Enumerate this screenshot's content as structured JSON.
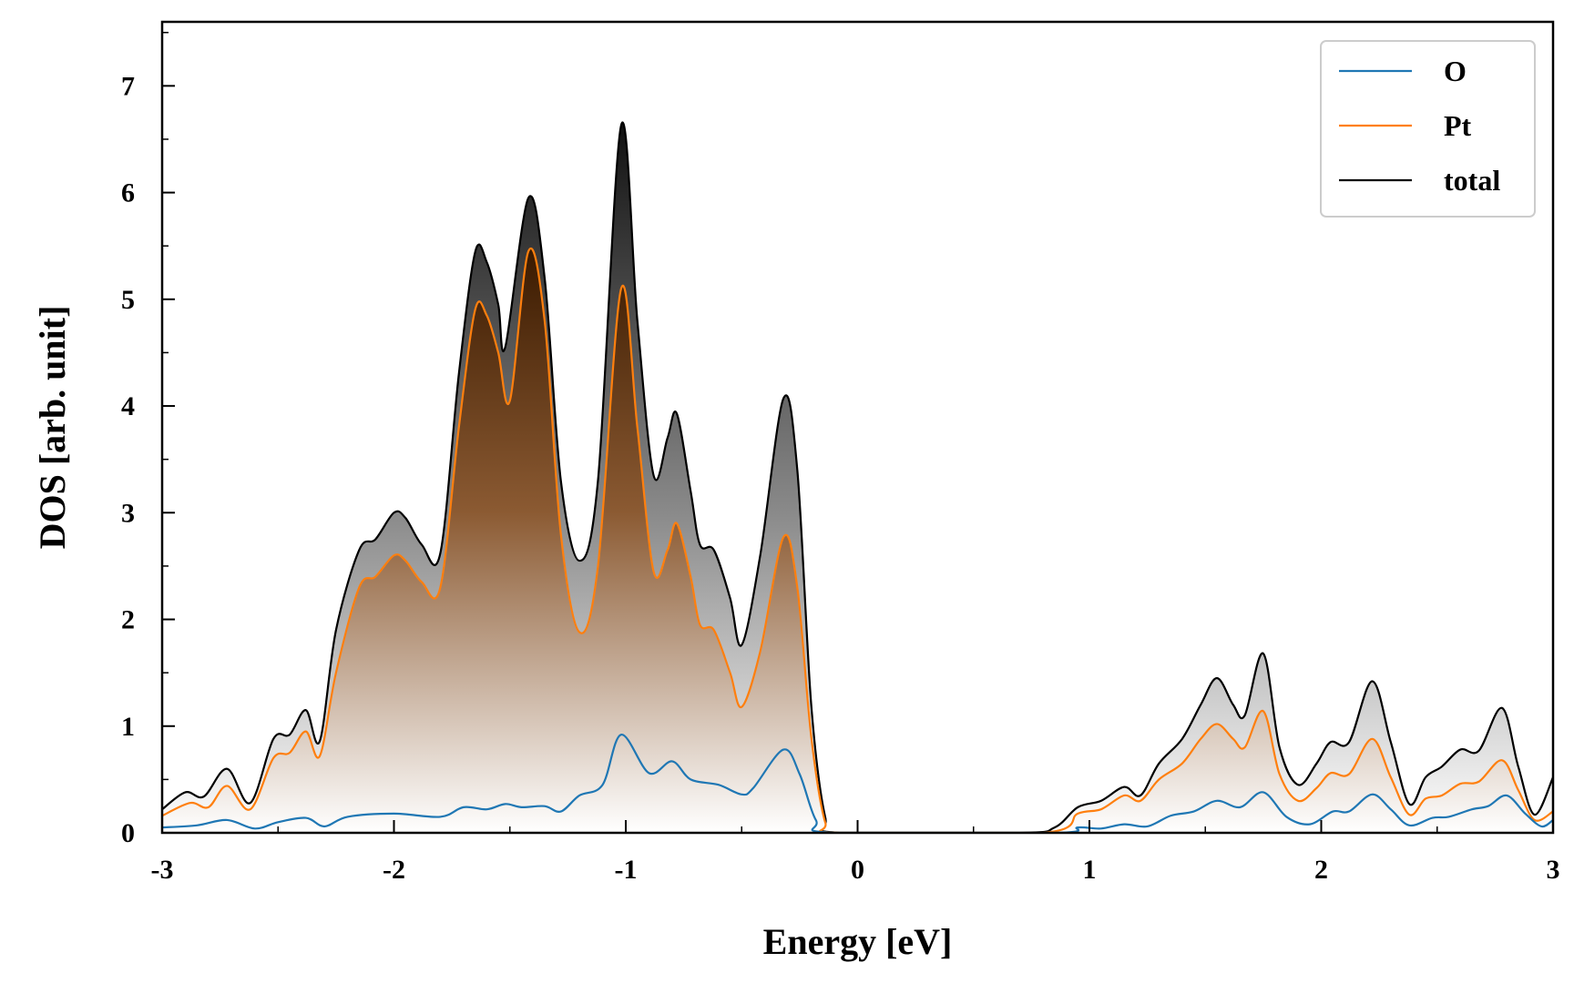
{
  "chart_data": {
    "type": "area",
    "xlabel": "Energy [eV]",
    "ylabel": "DOS [arb. unit]",
    "xlim": [
      -3,
      3
    ],
    "ylim": [
      0,
      7.6
    ],
    "x_ticks": [
      -3,
      -2,
      -1,
      0,
      1,
      2,
      3
    ],
    "y_ticks": [
      0,
      1,
      2,
      3,
      4,
      5,
      6,
      7
    ],
    "grid": false,
    "legend_position": "top-right",
    "series": [
      {
        "name": "O",
        "color": "#1f77b4",
        "fill": "none",
        "points": [
          [
            -3.0,
            0.05
          ],
          [
            -2.85,
            0.07
          ],
          [
            -2.72,
            0.12
          ],
          [
            -2.6,
            0.04
          ],
          [
            -2.5,
            0.1
          ],
          [
            -2.38,
            0.14
          ],
          [
            -2.3,
            0.06
          ],
          [
            -2.2,
            0.15
          ],
          [
            -2.0,
            0.18
          ],
          [
            -1.8,
            0.15
          ],
          [
            -1.7,
            0.24
          ],
          [
            -1.6,
            0.22
          ],
          [
            -1.52,
            0.27
          ],
          [
            -1.45,
            0.24
          ],
          [
            -1.35,
            0.25
          ],
          [
            -1.28,
            0.2
          ],
          [
            -1.2,
            0.35
          ],
          [
            -1.1,
            0.45
          ],
          [
            -1.02,
            0.92
          ],
          [
            -0.9,
            0.56
          ],
          [
            -0.8,
            0.67
          ],
          [
            -0.72,
            0.5
          ],
          [
            -0.6,
            0.45
          ],
          [
            -0.5,
            0.36
          ],
          [
            -0.45,
            0.42
          ],
          [
            -0.32,
            0.78
          ],
          [
            -0.25,
            0.55
          ],
          [
            -0.18,
            0.12
          ],
          [
            -0.1,
            0.0
          ],
          [
            0.85,
            0.0
          ],
          [
            0.95,
            0.05
          ],
          [
            1.05,
            0.04
          ],
          [
            1.15,
            0.08
          ],
          [
            1.25,
            0.06
          ],
          [
            1.35,
            0.16
          ],
          [
            1.45,
            0.2
          ],
          [
            1.55,
            0.3
          ],
          [
            1.65,
            0.24
          ],
          [
            1.75,
            0.38
          ],
          [
            1.85,
            0.15
          ],
          [
            1.95,
            0.08
          ],
          [
            2.05,
            0.2
          ],
          [
            2.12,
            0.2
          ],
          [
            2.22,
            0.36
          ],
          [
            2.3,
            0.22
          ],
          [
            2.38,
            0.07
          ],
          [
            2.48,
            0.14
          ],
          [
            2.55,
            0.15
          ],
          [
            2.65,
            0.22
          ],
          [
            2.72,
            0.25
          ],
          [
            2.8,
            0.35
          ],
          [
            2.88,
            0.18
          ],
          [
            2.95,
            0.06
          ],
          [
            3.0,
            0.12
          ]
        ]
      },
      {
        "name": "Pt",
        "color": "#ff7f0e",
        "fill": "brown-gradient",
        "points": [
          [
            -3.0,
            0.16
          ],
          [
            -2.88,
            0.28
          ],
          [
            -2.8,
            0.24
          ],
          [
            -2.72,
            0.44
          ],
          [
            -2.62,
            0.22
          ],
          [
            -2.52,
            0.7
          ],
          [
            -2.45,
            0.75
          ],
          [
            -2.38,
            0.95
          ],
          [
            -2.32,
            0.72
          ],
          [
            -2.25,
            1.5
          ],
          [
            -2.15,
            2.3
          ],
          [
            -2.08,
            2.4
          ],
          [
            -2.0,
            2.6
          ],
          [
            -1.95,
            2.55
          ],
          [
            -1.88,
            2.35
          ],
          [
            -1.8,
            2.3
          ],
          [
            -1.72,
            3.8
          ],
          [
            -1.65,
            4.9
          ],
          [
            -1.6,
            4.85
          ],
          [
            -1.55,
            4.5
          ],
          [
            -1.5,
            4.05
          ],
          [
            -1.42,
            5.45
          ],
          [
            -1.35,
            4.8
          ],
          [
            -1.28,
            2.8
          ],
          [
            -1.2,
            1.88
          ],
          [
            -1.12,
            2.5
          ],
          [
            -1.02,
            5.1
          ],
          [
            -0.95,
            3.8
          ],
          [
            -0.88,
            2.45
          ],
          [
            -0.82,
            2.65
          ],
          [
            -0.78,
            2.9
          ],
          [
            -0.72,
            2.4
          ],
          [
            -0.68,
            1.95
          ],
          [
            -0.62,
            1.9
          ],
          [
            -0.55,
            1.5
          ],
          [
            -0.5,
            1.18
          ],
          [
            -0.42,
            1.7
          ],
          [
            -0.32,
            2.77
          ],
          [
            -0.26,
            2.3
          ],
          [
            -0.2,
            0.9
          ],
          [
            -0.14,
            0.1
          ],
          [
            -0.08,
            0.0
          ],
          [
            0.8,
            0.0
          ],
          [
            0.95,
            0.18
          ],
          [
            1.05,
            0.22
          ],
          [
            1.15,
            0.35
          ],
          [
            1.22,
            0.3
          ],
          [
            1.3,
            0.5
          ],
          [
            1.4,
            0.65
          ],
          [
            1.48,
            0.88
          ],
          [
            1.55,
            1.02
          ],
          [
            1.62,
            0.88
          ],
          [
            1.67,
            0.8
          ],
          [
            1.75,
            1.14
          ],
          [
            1.82,
            0.55
          ],
          [
            1.9,
            0.3
          ],
          [
            1.98,
            0.42
          ],
          [
            2.04,
            0.56
          ],
          [
            2.12,
            0.55
          ],
          [
            2.22,
            0.88
          ],
          [
            2.3,
            0.52
          ],
          [
            2.38,
            0.17
          ],
          [
            2.45,
            0.32
          ],
          [
            2.52,
            0.35
          ],
          [
            2.6,
            0.46
          ],
          [
            2.68,
            0.48
          ],
          [
            2.78,
            0.68
          ],
          [
            2.85,
            0.4
          ],
          [
            2.92,
            0.12
          ],
          [
            3.0,
            0.2
          ]
        ]
      },
      {
        "name": "total",
        "color": "#000000",
        "fill": "gray-gradient",
        "points": [
          [
            -3.0,
            0.22
          ],
          [
            -2.9,
            0.38
          ],
          [
            -2.82,
            0.34
          ],
          [
            -2.72,
            0.6
          ],
          [
            -2.62,
            0.28
          ],
          [
            -2.52,
            0.88
          ],
          [
            -2.45,
            0.92
          ],
          [
            -2.38,
            1.15
          ],
          [
            -2.32,
            0.86
          ],
          [
            -2.25,
            1.9
          ],
          [
            -2.15,
            2.65
          ],
          [
            -2.08,
            2.75
          ],
          [
            -2.0,
            3.0
          ],
          [
            -1.95,
            2.95
          ],
          [
            -1.88,
            2.7
          ],
          [
            -1.8,
            2.62
          ],
          [
            -1.72,
            4.3
          ],
          [
            -1.65,
            5.44
          ],
          [
            -1.6,
            5.35
          ],
          [
            -1.55,
            4.95
          ],
          [
            -1.52,
            4.55
          ],
          [
            -1.42,
            5.95
          ],
          [
            -1.35,
            5.2
          ],
          [
            -1.28,
            3.3
          ],
          [
            -1.2,
            2.55
          ],
          [
            -1.12,
            3.3
          ],
          [
            -1.02,
            6.63
          ],
          [
            -0.95,
            4.8
          ],
          [
            -0.88,
            3.35
          ],
          [
            -0.82,
            3.7
          ],
          [
            -0.78,
            3.93
          ],
          [
            -0.72,
            3.2
          ],
          [
            -0.68,
            2.7
          ],
          [
            -0.62,
            2.65
          ],
          [
            -0.55,
            2.2
          ],
          [
            -0.5,
            1.76
          ],
          [
            -0.42,
            2.6
          ],
          [
            -0.32,
            4.07
          ],
          [
            -0.26,
            3.4
          ],
          [
            -0.2,
            1.2
          ],
          [
            -0.14,
            0.15
          ],
          [
            -0.08,
            0.0
          ],
          [
            0.7,
            0.0
          ],
          [
            0.85,
            0.05
          ],
          [
            0.95,
            0.24
          ],
          [
            1.05,
            0.3
          ],
          [
            1.15,
            0.43
          ],
          [
            1.22,
            0.35
          ],
          [
            1.3,
            0.65
          ],
          [
            1.4,
            0.88
          ],
          [
            1.48,
            1.2
          ],
          [
            1.55,
            1.45
          ],
          [
            1.62,
            1.2
          ],
          [
            1.67,
            1.1
          ],
          [
            1.75,
            1.68
          ],
          [
            1.82,
            0.8
          ],
          [
            1.9,
            0.45
          ],
          [
            1.98,
            0.65
          ],
          [
            2.04,
            0.85
          ],
          [
            2.12,
            0.85
          ],
          [
            2.22,
            1.42
          ],
          [
            2.3,
            0.85
          ],
          [
            2.38,
            0.27
          ],
          [
            2.45,
            0.52
          ],
          [
            2.52,
            0.62
          ],
          [
            2.6,
            0.78
          ],
          [
            2.68,
            0.77
          ],
          [
            2.78,
            1.17
          ],
          [
            2.85,
            0.62
          ],
          [
            2.92,
            0.17
          ],
          [
            3.0,
            0.52
          ]
        ]
      }
    ]
  }
}
